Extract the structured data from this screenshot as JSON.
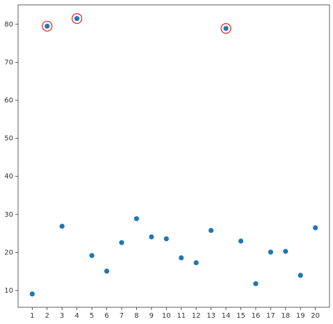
{
  "chart_data": {
    "type": "scatter",
    "x": [
      1,
      2,
      3,
      4,
      5,
      6,
      7,
      8,
      9,
      10,
      11,
      12,
      13,
      14,
      15,
      16,
      17,
      18,
      19,
      20
    ],
    "values": [
      9.1,
      79.5,
      26.9,
      81.5,
      19.2,
      15.1,
      22.6,
      28.9,
      24.1,
      23.6,
      18.6,
      17.3,
      25.8,
      78.9,
      23.0,
      11.8,
      20.1,
      20.3,
      14.0,
      26.5
    ],
    "color": "#1f77b4",
    "highlight_x": [
      2,
      4,
      14
    ],
    "highlight_color": "#e41a1c",
    "xlim": [
      0.05,
      20.95
    ],
    "xticks": [
      1,
      2,
      3,
      4,
      5,
      6,
      7,
      8,
      9,
      10,
      11,
      12,
      13,
      14,
      15,
      16,
      17,
      18,
      19,
      20
    ],
    "ylim": [
      5.6,
      85.1
    ],
    "yticks": [
      10,
      20,
      30,
      40,
      50,
      60,
      70,
      80
    ],
    "grid": false
  }
}
